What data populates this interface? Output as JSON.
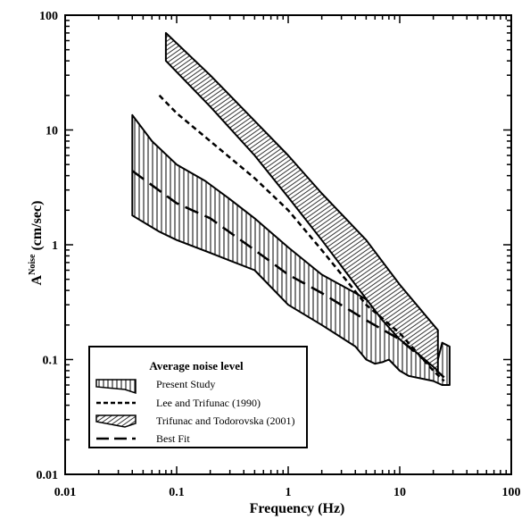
{
  "chart_data": {
    "type": "line",
    "x_scale": "log",
    "y_scale": "log",
    "xlim": [
      0.01,
      100
    ],
    "ylim": [
      0.01,
      100
    ],
    "xlabel": "Frequency (Hz)",
    "ylabel_main": "A",
    "ylabel_sup": "Noise",
    "ylabel_unit": " (cm/sec)",
    "x_ticks": [
      {
        "value": 0.01,
        "label": "0.01"
      },
      {
        "value": 0.1,
        "label": "0.1"
      },
      {
        "value": 1,
        "label": "1"
      },
      {
        "value": 10,
        "label": "10"
      },
      {
        "value": 100,
        "label": "100"
      }
    ],
    "y_ticks": [
      {
        "value": 0.01,
        "label": "0.01"
      },
      {
        "value": 0.1,
        "label": "0.1"
      },
      {
        "value": 1,
        "label": "1"
      },
      {
        "value": 10,
        "label": "10"
      },
      {
        "value": 100,
        "label": "100"
      }
    ],
    "legend": {
      "title": "Average noise level",
      "position": "bottom-left",
      "entries": [
        {
          "label": "Present Study",
          "style": "vertical-hatch"
        },
        {
          "label": "Lee and Trifunac (1990)",
          "style": "short-dash"
        },
        {
          "label": "Trifunac and Todorovska (2001)",
          "style": "diagonal-hatch"
        },
        {
          "label": "Best Fit",
          "style": "long-dash"
        }
      ]
    },
    "series": [
      {
        "name": "Present Study",
        "kind": "band",
        "pattern": "vertical-hatch",
        "upper": [
          [
            0.04,
            13.5
          ],
          [
            0.06,
            8
          ],
          [
            0.1,
            5
          ],
          [
            0.18,
            3.6
          ],
          [
            0.3,
            2.5
          ],
          [
            0.5,
            1.7
          ],
          [
            1,
            0.95
          ],
          [
            2,
            0.55
          ],
          [
            4,
            0.38
          ],
          [
            6,
            0.3
          ],
          [
            7,
            0.22
          ],
          [
            8,
            0.21
          ],
          [
            12,
            0.16
          ],
          [
            18,
            0.12
          ],
          [
            22,
            0.1
          ],
          [
            24,
            0.14
          ],
          [
            28,
            0.13
          ]
        ],
        "lower": [
          [
            0.04,
            1.8
          ],
          [
            0.07,
            1.3
          ],
          [
            0.1,
            1.1
          ],
          [
            0.2,
            0.85
          ],
          [
            0.5,
            0.6
          ],
          [
            1,
            0.3
          ],
          [
            2,
            0.2
          ],
          [
            4,
            0.13
          ],
          [
            5,
            0.1
          ],
          [
            6,
            0.092
          ],
          [
            7,
            0.095
          ],
          [
            8,
            0.1
          ],
          [
            10,
            0.08
          ],
          [
            12,
            0.072
          ],
          [
            20,
            0.065
          ],
          [
            24,
            0.06
          ],
          [
            28,
            0.06
          ]
        ]
      },
      {
        "name": "Lee and Trifunac (1990)",
        "kind": "line",
        "dash": "short",
        "points": [
          [
            0.07,
            20
          ],
          [
            0.1,
            14
          ],
          [
            0.2,
            8
          ],
          [
            0.5,
            3.8
          ],
          [
            1,
            2
          ],
          [
            2,
            0.9
          ],
          [
            5,
            0.3
          ],
          [
            10,
            0.17
          ],
          [
            20,
            0.08
          ],
          [
            25,
            0.065
          ]
        ]
      },
      {
        "name": "Trifunac and Todorovska (2001)",
        "kind": "band",
        "pattern": "diagonal-hatch",
        "upper": [
          [
            0.08,
            70
          ],
          [
            0.2,
            30
          ],
          [
            0.5,
            12
          ],
          [
            1,
            6
          ],
          [
            2,
            2.8
          ],
          [
            5,
            1.1
          ],
          [
            10,
            0.45
          ],
          [
            22,
            0.18
          ]
        ],
        "lower": [
          [
            0.08,
            40
          ],
          [
            0.2,
            16
          ],
          [
            0.5,
            6
          ],
          [
            1,
            2.6
          ],
          [
            2,
            1.1
          ],
          [
            4,
            0.45
          ],
          [
            7,
            0.22
          ],
          [
            10,
            0.15
          ],
          [
            15,
            0.11
          ],
          [
            22,
            0.08
          ]
        ]
      },
      {
        "name": "Best Fit",
        "kind": "line",
        "dash": "long",
        "points": [
          [
            0.04,
            4.4
          ],
          [
            0.1,
            2.3
          ],
          [
            0.2,
            1.7
          ],
          [
            0.5,
            0.9
          ],
          [
            1,
            0.55
          ],
          [
            2,
            0.38
          ],
          [
            5,
            0.22
          ],
          [
            10,
            0.15
          ],
          [
            20,
            0.085
          ],
          [
            25,
            0.07
          ]
        ]
      }
    ]
  }
}
